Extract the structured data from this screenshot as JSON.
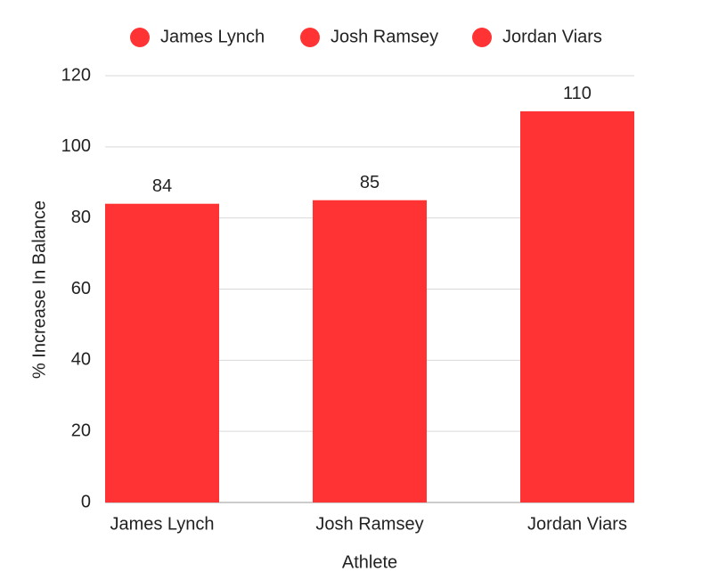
{
  "chart_data": {
    "type": "bar",
    "categories": [
      "James Lynch",
      "Josh Ramsey",
      "Jordan Viars"
    ],
    "values": [
      84,
      85,
      110
    ],
    "color": "#ff3333",
    "x_label": "Athlete",
    "y_label": "% Increase In Balance",
    "ylim": [
      0,
      120
    ],
    "yticks": [
      0,
      20,
      40,
      60,
      80,
      100,
      120
    ],
    "grid": true,
    "legend": "top"
  }
}
